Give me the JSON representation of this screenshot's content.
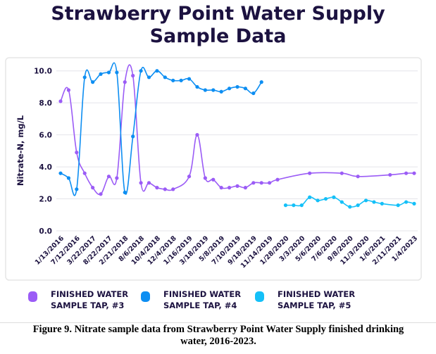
{
  "chart_data": {
    "type": "line",
    "title": "Strawberry Point Water Supply Sample Data",
    "ylabel": "Nitrate-N, mg/L",
    "xlabel": "",
    "ylim": [
      0,
      10
    ],
    "yticks": [
      "0.0",
      "2.0",
      "4.0",
      "6.0",
      "8.0",
      "10.0"
    ],
    "grid": true,
    "legend": "bottom",
    "categories": [
      "1/13/2016",
      "",
      "7/12/2016",
      "",
      "3/22/2017",
      "",
      "8/22/2017",
      "",
      "2/21/2018",
      "",
      "8/6/2018",
      "",
      "10/4/2018",
      "",
      "12/4/2018",
      "",
      "1/16/2019",
      "",
      "3/18/2019",
      "",
      "5/8/2019",
      "",
      "7/10/2019",
      "",
      "9/18/2019",
      "",
      "11/14/2019",
      "",
      "1/28/2020",
      "",
      "3/3/2020",
      "",
      "5/6/2020",
      "",
      "7/6/2020",
      "",
      "9/8/2020",
      "",
      "11/3/2020",
      "",
      "1/6/2021",
      "",
      "2/11/2021",
      "",
      "1/4/2023"
    ],
    "series": [
      {
        "name": "FINISHED WATER SAMPLE TAP, #3",
        "color": "#9b5cf6",
        "values": [
          8.1,
          8.8,
          4.9,
          3.6,
          2.7,
          2.3,
          3.4,
          3.3,
          9.3,
          9.7,
          3.0,
          3.0,
          2.7,
          2.6,
          2.6,
          null,
          3.4,
          6.0,
          3.3,
          3.2,
          2.7,
          2.7,
          2.8,
          2.7,
          3.0,
          3.0,
          3.0,
          3.2,
          null,
          null,
          null,
          3.6,
          null,
          null,
          null,
          3.6,
          null,
          3.4,
          null,
          null,
          null,
          3.5,
          null,
          3.6,
          3.6
        ]
      },
      {
        "name": "FINISHED WATER SAMPLE TAP, #4",
        "color": "#0d8ef2",
        "values": [
          3.6,
          3.3,
          2.6,
          9.6,
          9.3,
          9.8,
          9.9,
          9.9,
          2.4,
          5.9,
          10.0,
          9.6,
          10.0,
          9.6,
          9.4,
          9.4,
          9.5,
          9.0,
          8.8,
          8.8,
          8.7,
          8.9,
          9.0,
          8.9,
          8.6,
          9.3,
          null,
          null,
          null,
          null,
          null,
          null,
          null,
          null,
          null,
          null,
          null,
          null,
          null,
          null,
          null,
          null,
          null,
          null,
          null
        ]
      },
      {
        "name": "FINISHED WATER SAMPLE TAP, #5",
        "color": "#14c0f8",
        "values": [
          null,
          null,
          null,
          null,
          null,
          null,
          null,
          null,
          null,
          null,
          null,
          null,
          null,
          null,
          null,
          null,
          null,
          null,
          null,
          null,
          null,
          null,
          null,
          null,
          null,
          null,
          null,
          null,
          1.6,
          1.6,
          1.6,
          2.1,
          1.9,
          2.0,
          2.1,
          1.8,
          1.5,
          1.6,
          1.9,
          1.8,
          1.7,
          null,
          1.6,
          1.8,
          1.7
        ]
      }
    ]
  },
  "header": {
    "title_line1": "Strawberry Point Water Supply",
    "title_line2": "Sample Data"
  },
  "caption": {
    "line1": "Figure 9. Nitrate sample data from Strawberry Point Water Supply finished drinking",
    "line2": "water, 2016-2023."
  }
}
